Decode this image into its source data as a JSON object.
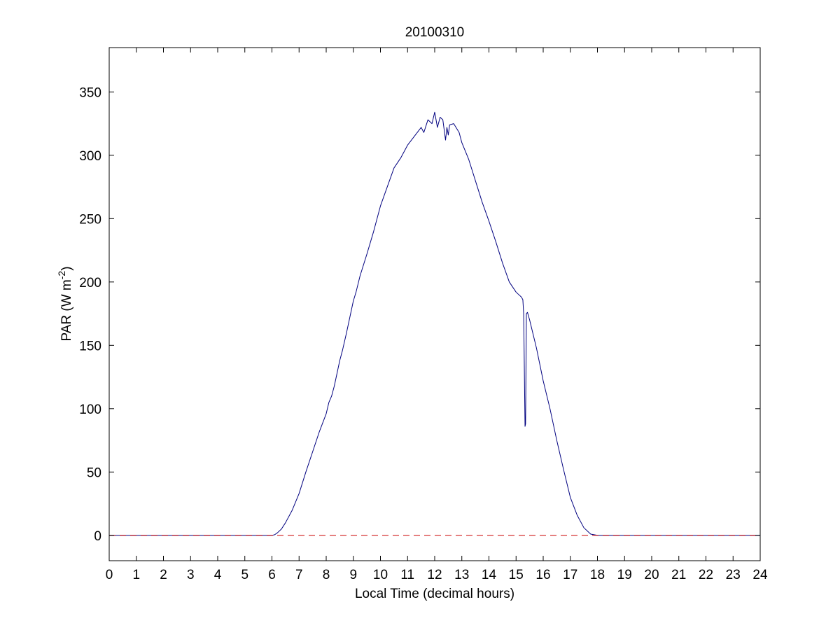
{
  "chart_data": {
    "type": "line",
    "title": "20100310",
    "xlabel": "Local Time (decimal hours)",
    "ylabel_main": "PAR (W m",
    "ylabel_sup": "-2",
    "ylabel_close": ")",
    "xlim": [
      0,
      24
    ],
    "ylim": [
      -20,
      385
    ],
    "xticks": [
      0,
      1,
      2,
      3,
      4,
      5,
      6,
      7,
      8,
      9,
      10,
      11,
      12,
      13,
      14,
      15,
      16,
      17,
      18,
      19,
      20,
      21,
      22,
      23,
      24
    ],
    "yticks": [
      0,
      50,
      100,
      150,
      200,
      250,
      300,
      350
    ],
    "grid": false,
    "colors": {
      "series": "#00007f",
      "baseline": "#cc0000",
      "axes": "#000000"
    },
    "series": [
      {
        "color": "#00007f",
        "x": [
          0,
          6.0,
          6.1,
          6.2,
          6.35,
          6.5,
          6.75,
          7.0,
          7.25,
          7.5,
          7.75,
          8.0,
          8.1,
          8.2,
          8.3,
          8.4,
          8.5,
          8.6,
          8.75,
          9.0,
          9.1,
          9.25,
          9.5,
          9.75,
          10.0,
          10.25,
          10.5,
          10.75,
          11.0,
          11.25,
          11.5,
          11.6,
          11.75,
          11.9,
          12.0,
          12.1,
          12.2,
          12.3,
          12.4,
          12.45,
          12.5,
          12.55,
          12.7,
          12.9,
          13.0,
          13.25,
          13.5,
          13.75,
          14.0,
          14.25,
          14.5,
          14.75,
          15.0,
          15.1,
          15.2,
          15.25,
          15.28,
          15.3,
          15.33,
          15.35,
          15.38,
          15.42,
          15.5,
          15.75,
          16.0,
          16.25,
          16.5,
          16.75,
          17.0,
          17.25,
          17.5,
          17.75,
          18.0,
          18.2,
          18.3,
          18.5,
          24
        ],
        "y": [
          0,
          0,
          0.5,
          2,
          5,
          10,
          20,
          33,
          50,
          66,
          82,
          96,
          105,
          110,
          118,
          128,
          138,
          146,
          160,
          185,
          192,
          205,
          222,
          240,
          260,
          275,
          290,
          298,
          308,
          315,
          322,
          318,
          328,
          325,
          334,
          322,
          330,
          328,
          312,
          322,
          316,
          324,
          325,
          318,
          310,
          297,
          280,
          263,
          248,
          232,
          215,
          200,
          192,
          190,
          188,
          186,
          175,
          140,
          86,
          88,
          175,
          176,
          170,
          148,
          122,
          100,
          75,
          52,
          30,
          16,
          6,
          1,
          0,
          0,
          0,
          0,
          0
        ]
      },
      {
        "color": "#cc0000",
        "style": "dashed",
        "x": [
          0,
          24
        ],
        "y": [
          0,
          0
        ]
      }
    ]
  }
}
